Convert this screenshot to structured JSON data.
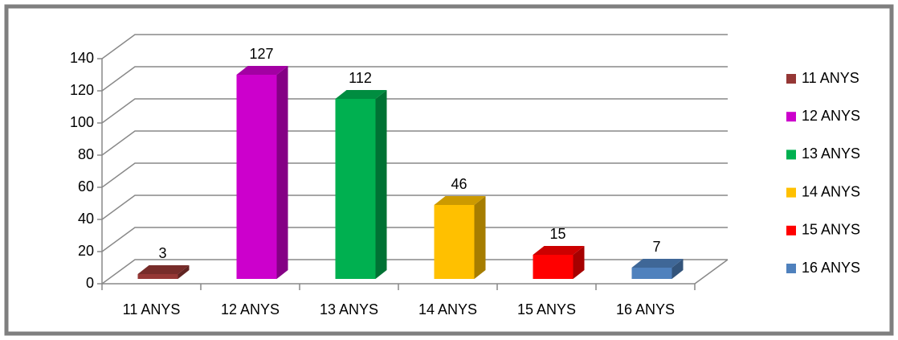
{
  "chart_data": {
    "type": "bar3d",
    "categories": [
      "11 ANYS",
      "12 ANYS",
      "13 ANYS",
      "14 ANYS",
      "15 ANYS",
      "16 ANYS"
    ],
    "values": [
      3,
      127,
      112,
      46,
      15,
      7
    ],
    "colors": [
      "#953735",
      "#cc00cc",
      "#00b050",
      "#ffc000",
      "#ff0000",
      "#4f81bd"
    ],
    "ylim": [
      0,
      140
    ],
    "yticks": [
      0,
      20,
      40,
      60,
      80,
      100,
      120,
      140
    ],
    "grid": true,
    "legend": "right"
  }
}
